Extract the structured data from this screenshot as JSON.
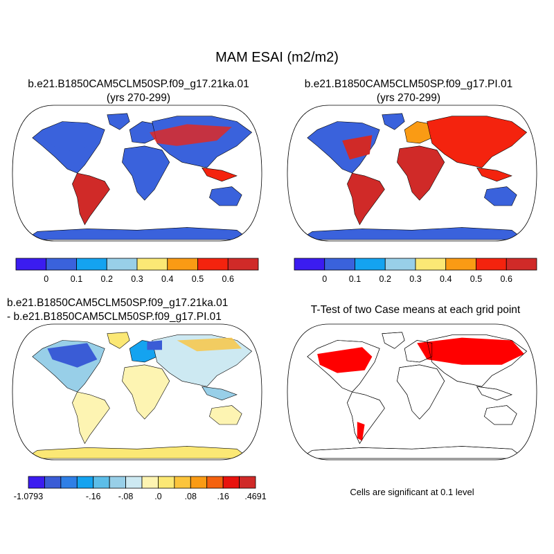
{
  "figure": {
    "title": "MAM ESAI (m2/m2)"
  },
  "panels": {
    "p1": {
      "title_line1": "b.e21.B1850CAM5CLM50SP.f09_g17.21ka.01",
      "title_line2": "(yrs 270-299)"
    },
    "p2": {
      "title_line1": "b.e21.B1850CAM5CLM50SP.f09_g17.PI.01",
      "title_line2": "(yrs 270-299)"
    },
    "p3": {
      "title_line1": "b.e21.B1850CAM5CLM50SP.f09_g17.21ka.01",
      "title_line2": "- b.e21.B1850CAM5CLM50SP.f09_g17.PI.01"
    },
    "p4": {
      "title_line1": "T-Test of two Case means at each grid point",
      "note": "Cells are significant at 0.1 level"
    }
  },
  "colorbars": {
    "abs": {
      "colors": [
        "#3b1cf0",
        "#3a62dc",
        "#14a3f0",
        "#98cfe8",
        "#fbe875",
        "#fa9b14",
        "#f4230e",
        "#d02a28"
      ],
      "labels": [
        "0",
        "0.1",
        "0.2",
        "0.3",
        "0.4",
        "0.5",
        "0.6"
      ]
    },
    "diff": {
      "colors": [
        "#3b1cf0",
        "#3a5cd6",
        "#2f7fe6",
        "#14a3f0",
        "#5cbde8",
        "#98cfe8",
        "#cde9f2",
        "#fdf4b2",
        "#fbe875",
        "#fbc43c",
        "#fa9b14",
        "#f4610e",
        "#e8130e",
        "#d02a28"
      ],
      "labels": [
        "-1.0793",
        "-.16",
        "-.08",
        ".0",
        ".08",
        ".16",
        ".4691"
      ]
    }
  },
  "colors": {
    "ocean": "#ffffff",
    "coast": "#000000",
    "significant": "#ff0000"
  }
}
